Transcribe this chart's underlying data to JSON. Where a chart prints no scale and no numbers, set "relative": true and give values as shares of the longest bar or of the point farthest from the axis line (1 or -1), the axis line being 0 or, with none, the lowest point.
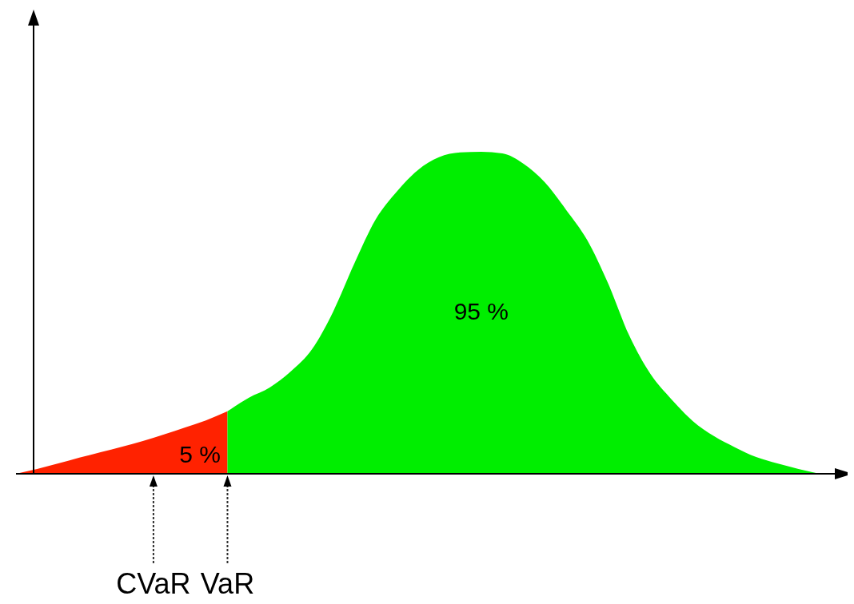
{
  "chart_data": {
    "type": "area",
    "relative": true,
    "tick_labels": false,
    "categories": [
      null,
      null,
      null,
      null,
      null,
      null,
      null,
      null,
      null,
      null,
      null,
      null,
      null,
      null,
      null,
      null,
      null,
      null,
      null,
      null,
      null,
      null,
      null,
      null,
      null,
      null,
      null,
      null,
      null,
      null,
      null,
      null,
      null,
      null,
      null,
      null,
      null,
      null,
      null
    ],
    "series": [
      {
        "color": "#ff2200",
        "values": [
          0,
          0.015,
          0.032,
          0.05,
          0.067,
          0.084,
          0.102,
          0.122,
          0.144,
          0.166,
          0.194,
          null,
          null,
          null,
          null,
          null,
          null,
          null,
          null,
          null,
          null,
          null,
          null,
          null,
          null,
          null,
          null,
          null,
          null,
          null,
          null,
          null,
          null,
          null,
          null,
          null,
          null,
          null,
          null
        ]
      },
      {
        "color": "#00ee00",
        "values": [
          null,
          null,
          null,
          null,
          null,
          null,
          null,
          null,
          null,
          null,
          0.194,
          0.236,
          0.268,
          0.318,
          0.387,
          0.504,
          0.653,
          0.789,
          0.876,
          0.943,
          0.983,
          0.998,
          1,
          0.995,
          0.963,
          0.906,
          0.821,
          0.727,
          0.591,
          0.429,
          0.31,
          0.231,
          0.164,
          0.117,
          0.082,
          0.052,
          0.032,
          0.015,
          0
        ]
      }
    ],
    "annotations": [
      "5 %",
      "95 %",
      "CVaR",
      "VaR"
    ]
  }
}
